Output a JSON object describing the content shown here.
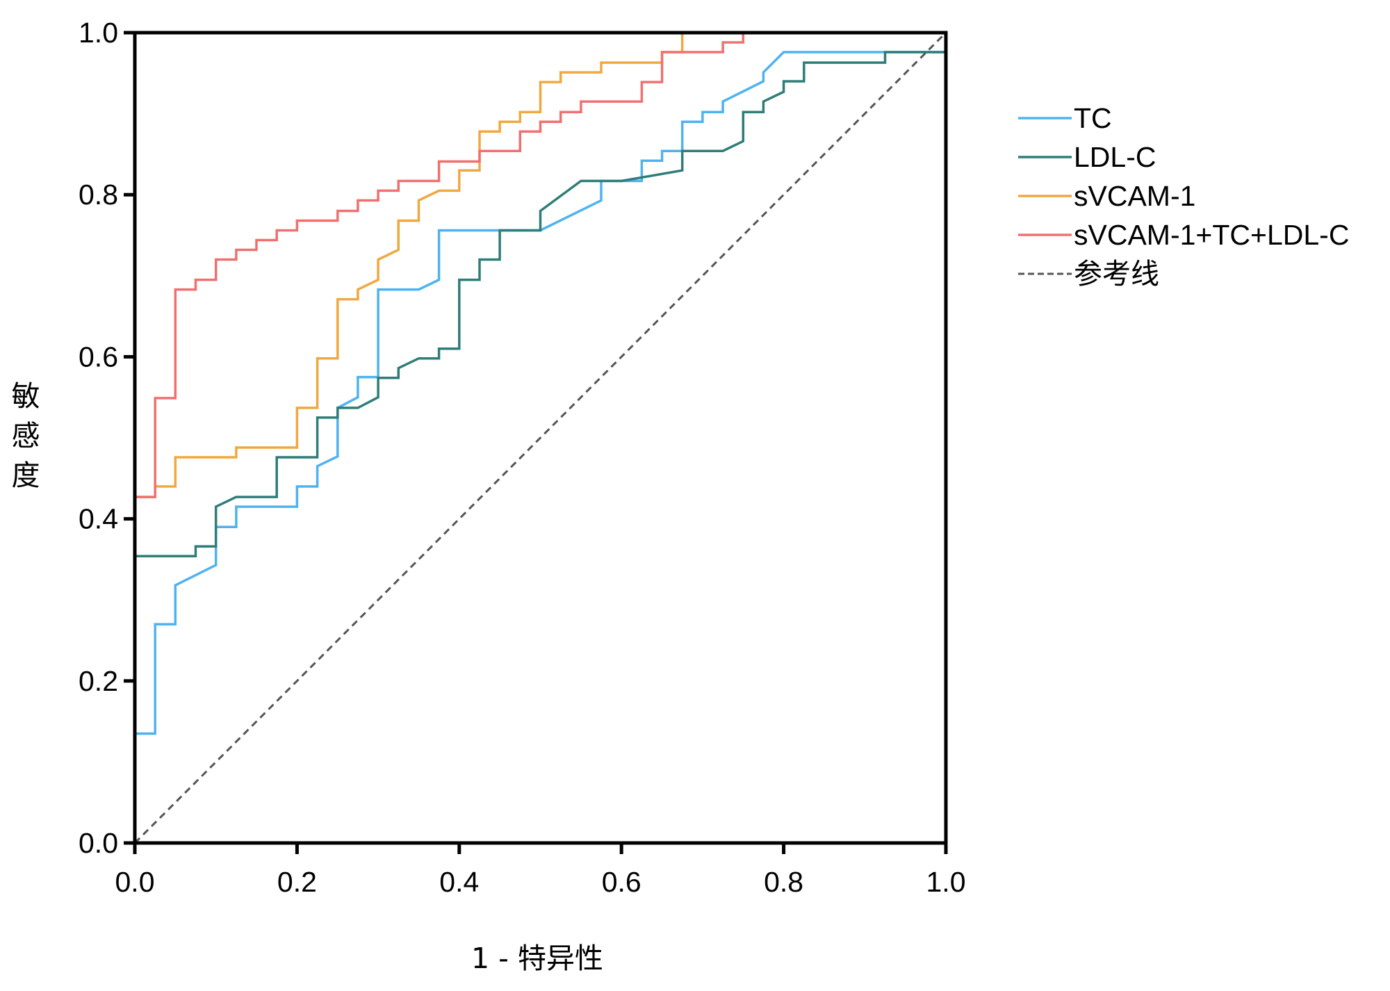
{
  "chart_data": {
    "type": "line",
    "title": "",
    "xlabel": "1 - 特异性",
    "ylabel": "敏感度",
    "xlim": [
      0,
      1
    ],
    "ylim": [
      0,
      1
    ],
    "xticks": [
      "0.0",
      "0.2",
      "0.4",
      "0.6",
      "0.8",
      "1.0"
    ],
    "yticks": [
      "0.0",
      "0.2",
      "0.4",
      "0.6",
      "0.8",
      "1.0"
    ],
    "grid": false,
    "legend_position": "right",
    "series": [
      {
        "name": "TC",
        "color": "#4db3f0",
        "dash": false,
        "points": [
          [
            0,
            0.135
          ],
          [
            0.025,
            0.135
          ],
          [
            0.025,
            0.27
          ],
          [
            0.05,
            0.27
          ],
          [
            0.05,
            0.318
          ],
          [
            0.1,
            0.343
          ],
          [
            0.1,
            0.39
          ],
          [
            0.125,
            0.39
          ],
          [
            0.125,
            0.415
          ],
          [
            0.2,
            0.415
          ],
          [
            0.2,
            0.44
          ],
          [
            0.225,
            0.44
          ],
          [
            0.225,
            0.465
          ],
          [
            0.25,
            0.477
          ],
          [
            0.25,
            0.537
          ],
          [
            0.275,
            0.55
          ],
          [
            0.275,
            0.575
          ],
          [
            0.3,
            0.575
          ],
          [
            0.3,
            0.683
          ],
          [
            0.35,
            0.683
          ],
          [
            0.375,
            0.695
          ],
          [
            0.375,
            0.756
          ],
          [
            0.5,
            0.756
          ],
          [
            0.575,
            0.793
          ],
          [
            0.575,
            0.817
          ],
          [
            0.625,
            0.817
          ],
          [
            0.625,
            0.842
          ],
          [
            0.65,
            0.842
          ],
          [
            0.65,
            0.854
          ],
          [
            0.675,
            0.854
          ],
          [
            0.675,
            0.89
          ],
          [
            0.7,
            0.89
          ],
          [
            0.7,
            0.902
          ],
          [
            0.725,
            0.902
          ],
          [
            0.725,
            0.915
          ],
          [
            0.775,
            0.94
          ],
          [
            0.775,
            0.951
          ],
          [
            0.8,
            0.976
          ],
          [
            1,
            0.976
          ]
        ]
      },
      {
        "name": "LDL-C",
        "color": "#2e7d78",
        "dash": false,
        "points": [
          [
            0,
            0.354
          ],
          [
            0.075,
            0.354
          ],
          [
            0.075,
            0.366
          ],
          [
            0.1,
            0.366
          ],
          [
            0.1,
            0.415
          ],
          [
            0.125,
            0.427
          ],
          [
            0.175,
            0.427
          ],
          [
            0.175,
            0.476
          ],
          [
            0.225,
            0.476
          ],
          [
            0.225,
            0.525
          ],
          [
            0.25,
            0.525
          ],
          [
            0.25,
            0.537
          ],
          [
            0.275,
            0.537
          ],
          [
            0.3,
            0.55
          ],
          [
            0.3,
            0.574
          ],
          [
            0.325,
            0.574
          ],
          [
            0.325,
            0.586
          ],
          [
            0.35,
            0.598
          ],
          [
            0.375,
            0.598
          ],
          [
            0.375,
            0.61
          ],
          [
            0.4,
            0.61
          ],
          [
            0.4,
            0.695
          ],
          [
            0.425,
            0.695
          ],
          [
            0.425,
            0.72
          ],
          [
            0.45,
            0.72
          ],
          [
            0.45,
            0.756
          ],
          [
            0.5,
            0.756
          ],
          [
            0.5,
            0.78
          ],
          [
            0.55,
            0.817
          ],
          [
            0.6,
            0.817
          ],
          [
            0.675,
            0.83
          ],
          [
            0.675,
            0.854
          ],
          [
            0.725,
            0.854
          ],
          [
            0.75,
            0.866
          ],
          [
            0.75,
            0.902
          ],
          [
            0.775,
            0.902
          ],
          [
            0.775,
            0.915
          ],
          [
            0.8,
            0.927
          ],
          [
            0.8,
            0.94
          ],
          [
            0.825,
            0.94
          ],
          [
            0.825,
            0.963
          ],
          [
            0.925,
            0.963
          ],
          [
            0.925,
            0.976
          ],
          [
            1,
            0.976
          ]
        ]
      },
      {
        "name": "sVCAM-1",
        "color": "#f0a840",
        "dash": false,
        "points": [
          [
            0,
            0.427
          ],
          [
            0.025,
            0.427
          ],
          [
            0.025,
            0.44
          ],
          [
            0.05,
            0.44
          ],
          [
            0.05,
            0.476
          ],
          [
            0.125,
            0.476
          ],
          [
            0.125,
            0.488
          ],
          [
            0.2,
            0.488
          ],
          [
            0.2,
            0.537
          ],
          [
            0.225,
            0.537
          ],
          [
            0.225,
            0.598
          ],
          [
            0.25,
            0.598
          ],
          [
            0.25,
            0.671
          ],
          [
            0.275,
            0.671
          ],
          [
            0.275,
            0.683
          ],
          [
            0.3,
            0.695
          ],
          [
            0.3,
            0.72
          ],
          [
            0.325,
            0.732
          ],
          [
            0.325,
            0.768
          ],
          [
            0.35,
            0.768
          ],
          [
            0.35,
            0.793
          ],
          [
            0.375,
            0.805
          ],
          [
            0.4,
            0.805
          ],
          [
            0.4,
            0.83
          ],
          [
            0.425,
            0.83
          ],
          [
            0.425,
            0.878
          ],
          [
            0.45,
            0.878
          ],
          [
            0.45,
            0.89
          ],
          [
            0.475,
            0.89
          ],
          [
            0.475,
            0.902
          ],
          [
            0.5,
            0.902
          ],
          [
            0.5,
            0.939
          ],
          [
            0.525,
            0.939
          ],
          [
            0.525,
            0.951
          ],
          [
            0.575,
            0.951
          ],
          [
            0.575,
            0.963
          ],
          [
            0.65,
            0.963
          ],
          [
            0.65,
            0.976
          ],
          [
            0.675,
            0.976
          ],
          [
            0.675,
            1
          ]
        ]
      },
      {
        "name": "sVCAM-1+TC+LDL-C",
        "color": "#f07070",
        "dash": false,
        "points": [
          [
            0,
            0.427
          ],
          [
            0.025,
            0.427
          ],
          [
            0.025,
            0.549
          ],
          [
            0.05,
            0.549
          ],
          [
            0.05,
            0.683
          ],
          [
            0.075,
            0.683
          ],
          [
            0.075,
            0.695
          ],
          [
            0.1,
            0.695
          ],
          [
            0.1,
            0.72
          ],
          [
            0.125,
            0.72
          ],
          [
            0.125,
            0.732
          ],
          [
            0.15,
            0.732
          ],
          [
            0.15,
            0.744
          ],
          [
            0.175,
            0.744
          ],
          [
            0.175,
            0.756
          ],
          [
            0.2,
            0.756
          ],
          [
            0.2,
            0.768
          ],
          [
            0.25,
            0.768
          ],
          [
            0.25,
            0.78
          ],
          [
            0.275,
            0.78
          ],
          [
            0.275,
            0.793
          ],
          [
            0.3,
            0.793
          ],
          [
            0.3,
            0.805
          ],
          [
            0.325,
            0.805
          ],
          [
            0.325,
            0.817
          ],
          [
            0.375,
            0.817
          ],
          [
            0.375,
            0.841
          ],
          [
            0.425,
            0.841
          ],
          [
            0.425,
            0.854
          ],
          [
            0.475,
            0.854
          ],
          [
            0.475,
            0.878
          ],
          [
            0.5,
            0.878
          ],
          [
            0.5,
            0.89
          ],
          [
            0.525,
            0.89
          ],
          [
            0.525,
            0.902
          ],
          [
            0.55,
            0.902
          ],
          [
            0.55,
            0.915
          ],
          [
            0.625,
            0.915
          ],
          [
            0.625,
            0.939
          ],
          [
            0.65,
            0.939
          ],
          [
            0.65,
            0.976
          ],
          [
            0.725,
            0.976
          ],
          [
            0.725,
            0.988
          ],
          [
            0.75,
            0.988
          ],
          [
            0.75,
            1
          ]
        ]
      },
      {
        "name": "参考线",
        "color": "#555555",
        "dash": true,
        "points": [
          [
            0,
            0
          ],
          [
            1,
            1
          ]
        ]
      }
    ]
  }
}
